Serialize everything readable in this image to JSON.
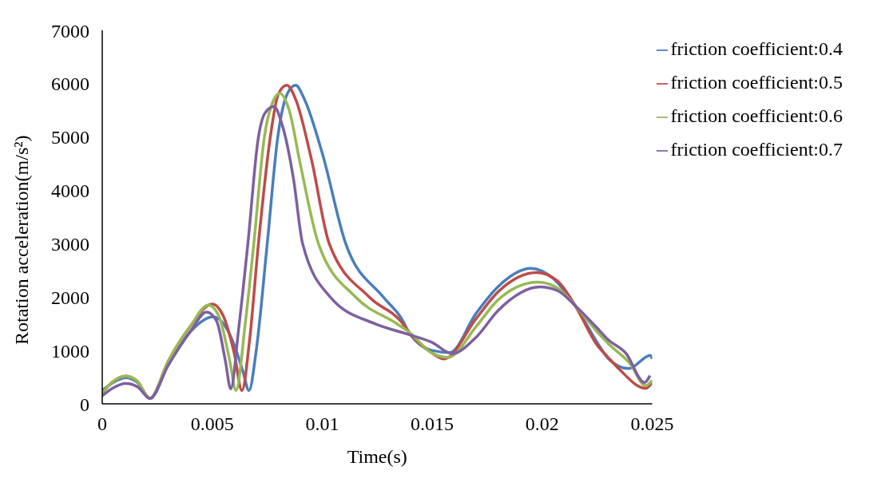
{
  "chart_data": {
    "type": "line",
    "xlabel": "Time(s)",
    "ylabel": "Rotation acceleration(m/s²)",
    "xlim": [
      0,
      0.025
    ],
    "xticks": [
      0,
      0.005,
      0.01,
      0.015,
      0.02,
      0.025
    ],
    "ylim": [
      0,
      7000
    ],
    "yticks": [
      0,
      1000,
      2000,
      3000,
      4000,
      5000,
      6000,
      7000
    ],
    "grid": false,
    "legend": "top right",
    "marker": "none",
    "line_style": "solid",
    "series": [
      {
        "name": "friction coefficient:0.4",
        "color": "#4a7ebb",
        "x": [
          0,
          0.0005,
          0.00107,
          0.0016,
          0.00217,
          0.003,
          0.004,
          0.00504,
          0.0056,
          0.006,
          0.0064,
          0.00667,
          0.007,
          0.0075,
          0.00798,
          0.0084,
          0.00879,
          0.0092,
          0.01,
          0.01107,
          0.01278,
          0.0136,
          0.01393,
          0.015,
          0.0158,
          0.017,
          0.018,
          0.01948,
          0.0205,
          0.0215,
          0.0225,
          0.023,
          0.02393,
          0.02492,
          0.025
        ],
        "values": [
          250,
          400,
          490,
          400,
          100,
          750,
          1350,
          1630,
          1450,
          1100,
          600,
          250,
          1000,
          3000,
          5000,
          5800,
          5970,
          5700,
          4700,
          3000,
          2000,
          1600,
          1350,
          1000,
          960,
          1700,
          2200,
          2540,
          2350,
          1840,
          1150,
          850,
          660,
          910,
          840
        ]
      },
      {
        "name": "friction coefficient:0.5",
        "color": "#be4b48",
        "x": [
          0,
          0.0005,
          0.00107,
          0.0016,
          0.00217,
          0.003,
          0.004,
          0.005,
          0.0055,
          0.006,
          0.00635,
          0.0067,
          0.0071,
          0.00764,
          0.008,
          0.00839,
          0.0088,
          0.0095,
          0.01032,
          0.01214,
          0.01367,
          0.01393,
          0.015,
          0.01554,
          0.017,
          0.018,
          0.01975,
          0.0207,
          0.0215,
          0.0225,
          0.023,
          0.0235,
          0.0247,
          0.025
        ],
        "values": [
          200,
          420,
          520,
          420,
          100,
          800,
          1450,
          1870,
          1650,
          950,
          250,
          1200,
          3000,
          5000,
          5800,
          5970,
          5700,
          4600,
          3000,
          2000,
          1500,
          1350,
          950,
          840,
          1600,
          2100,
          2460,
          2300,
          1840,
          1100,
          870,
          650,
          290,
          400
        ]
      },
      {
        "name": "friction coefficient:0.6",
        "color": "#98b954",
        "x": [
          0,
          0.0005,
          0.00107,
          0.0016,
          0.00217,
          0.003,
          0.004,
          0.00482,
          0.0053,
          0.0058,
          0.00608,
          0.0065,
          0.00689,
          0.00737,
          0.0077,
          0.00807,
          0.0085,
          0.009,
          0.00983,
          0.01152,
          0.0134,
          0.01393,
          0.015,
          0.01573,
          0.017,
          0.018,
          0.0198,
          0.0207,
          0.0215,
          0.0225,
          0.023,
          0.024,
          0.0247,
          0.025
        ],
        "values": [
          200,
          420,
          520,
          420,
          100,
          800,
          1450,
          1850,
          1650,
          800,
          250,
          1500,
          3000,
          5000,
          5600,
          5820,
          5500,
          4500,
          3000,
          2000,
          1500,
          1350,
          950,
          870,
          1450,
          1950,
          2280,
          2170,
          1840,
          1350,
          1130,
          750,
          340,
          440
        ]
      },
      {
        "name": "friction coefficient:0.7",
        "color": "#7d60a0",
        "x": [
          0,
          0.0005,
          0.00107,
          0.0016,
          0.00217,
          0.003,
          0.004,
          0.00474,
          0.0052,
          0.0056,
          0.00584,
          0.0062,
          0.00662,
          0.0071,
          0.0074,
          0.0078,
          0.0082,
          0.0087,
          0.00911,
          0.01037,
          0.0124,
          0.01393,
          0.015,
          0.0159,
          0.017,
          0.018,
          0.0199,
          0.0207,
          0.0215,
          0.0225,
          0.023,
          0.0238,
          0.02465,
          0.0249
        ],
        "values": [
          150,
          300,
          380,
          320,
          100,
          720,
          1350,
          1720,
          1550,
          800,
          280,
          1400,
          3000,
          5000,
          5450,
          5570,
          5200,
          4200,
          3000,
          2000,
          1500,
          1300,
          1150,
          940,
          1250,
          1750,
          2190,
          2120,
          1840,
          1420,
          1200,
          950,
          400,
          530
        ]
      }
    ]
  }
}
